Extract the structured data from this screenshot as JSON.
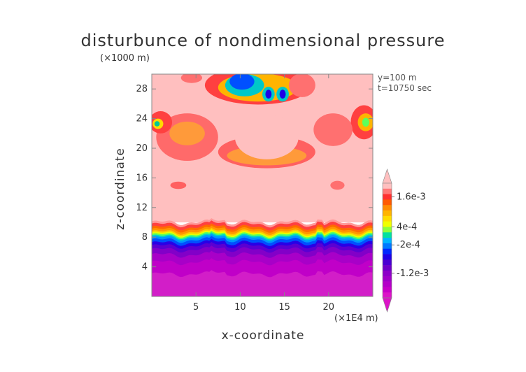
{
  "chart_data": {
    "type": "heatmap",
    "title": "disturbunce of nondimensional pressure",
    "xlabel": "x-coordinate",
    "ylabel": "z-coordinate",
    "x_unit": "(×1E4 m)",
    "y_unit": "(×1000 m)",
    "annotation": [
      "y=100 m",
      "t=10750 sec"
    ],
    "xlim": [
      0,
      25
    ],
    "ylim": [
      0,
      30
    ],
    "x_ticks": [
      5,
      10,
      15,
      20
    ],
    "y_ticks": [
      4,
      8,
      12,
      16,
      20,
      24,
      28
    ],
    "colorbar": {
      "labels": [
        "1.6e-3",
        "4e-4",
        "-2e-4",
        "-1.2e-3"
      ],
      "colors_top_to_bottom": [
        "#ffbfbf",
        "#ff7878",
        "#ff3030",
        "#ff5a00",
        "#ff8c00",
        "#ffb400",
        "#ffdc00",
        "#f0ff00",
        "#8cff3c",
        "#00e0a0",
        "#00b4ff",
        "#0078ff",
        "#0028ff",
        "#1e00e6",
        "#4a00d2",
        "#6e00c8",
        "#8c00c8",
        "#a000c8",
        "#b400c8",
        "#c800c8",
        "#dc14c8"
      ],
      "extend": "both"
    },
    "layers": [
      {
        "name": "lower negative region",
        "z_from": 0,
        "z_to": 7,
        "color": "#d21ec8"
      },
      {
        "name": "transition band",
        "z_from": 7,
        "z_to": 10,
        "color": "gradient"
      },
      {
        "name": "upper positive region",
        "z_from": 10,
        "z_to": 30,
        "color": "#ffbfbf"
      }
    ]
  },
  "colors": {
    "background": "#ffffff",
    "frame": "#888888",
    "text": "#333333"
  }
}
